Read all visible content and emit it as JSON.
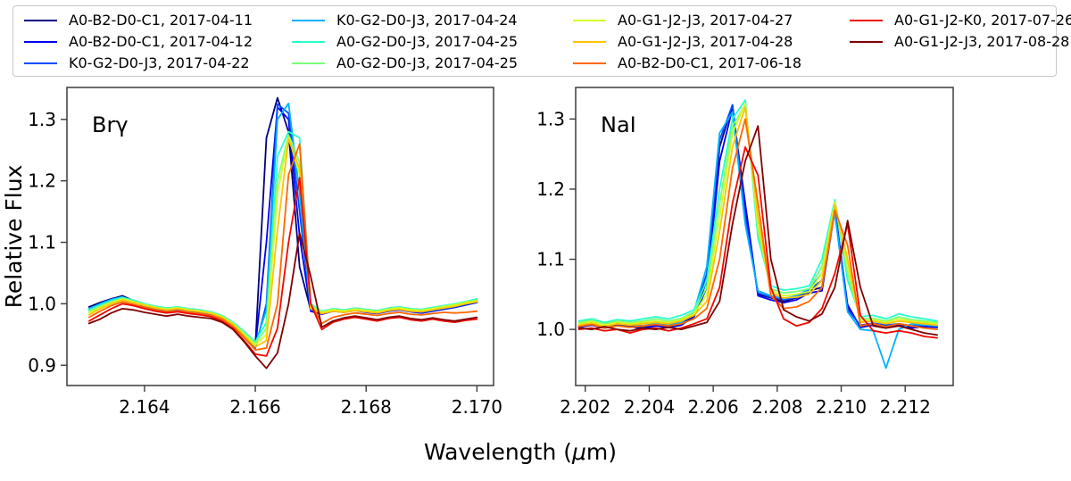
{
  "chart_data": {
    "type": "line",
    "xlabel": "Wavelength (μm)",
    "ylabel": "Relative Flux",
    "legend_position": "top",
    "grid": false,
    "panels": [
      {
        "id": "brgamma",
        "label": "Brγ",
        "xlim": [
          2.1626,
          2.1703
        ],
        "ylim": [
          0.867,
          1.352
        ],
        "xticks": [
          2.164,
          2.166,
          2.168,
          2.17
        ],
        "xtick_labels": [
          "2.164",
          "2.166",
          "2.168",
          "2.170"
        ],
        "yticks": [
          0.9,
          1.0,
          1.1,
          1.2,
          1.3
        ],
        "ytick_labels": [
          "0.9",
          "1.0",
          "1.1",
          "1.2",
          "1.3"
        ],
        "x_start": 2.163,
        "x_step": 0.0002
      },
      {
        "id": "nai",
        "label": "NaI",
        "xlim": [
          2.2017,
          2.2135
        ],
        "ylim": [
          0.92,
          1.345
        ],
        "xticks": [
          2.202,
          2.204,
          2.206,
          2.208,
          2.21,
          2.212
        ],
        "xtick_labels": [
          "2.202",
          "2.204",
          "2.206",
          "2.208",
          "2.210",
          "2.212"
        ],
        "yticks": [
          1.0,
          1.1,
          1.2,
          1.3
        ],
        "ytick_labels": [
          "1.0",
          "1.1",
          "1.2",
          "1.3"
        ],
        "x_start": 2.2018,
        "x_step": 0.0004
      }
    ],
    "series": [
      {
        "label": "A0-B2-D0-C1, 2017-04-11",
        "color": "#000080",
        "brgamma": [
          0.995,
          1.002,
          1.008,
          1.013,
          1.005,
          0.998,
          0.993,
          0.99,
          0.994,
          0.99,
          0.987,
          0.984,
          0.978,
          0.968,
          0.95,
          0.932,
          1.27,
          1.335,
          1.28,
          1.06,
          0.99,
          0.984,
          0.99,
          0.987,
          0.99,
          0.988,
          0.986,
          0.99,
          0.992,
          0.989,
          0.987,
          0.99,
          0.993,
          0.996,
          1.0,
          1.004
        ],
        "nai": [
          1.005,
          1.008,
          1.004,
          1.008,
          1.006,
          1.003,
          1.007,
          1.005,
          1.008,
          1.02,
          1.07,
          1.26,
          1.32,
          1.17,
          1.05,
          1.045,
          1.04,
          1.045,
          1.055,
          1.06,
          1.175,
          1.03,
          1.005,
          1.008,
          1.005,
          1.007,
          1.004,
          1.006,
          1.005
        ]
      },
      {
        "label": "A0-B2-D0-C1, 2017-04-12",
        "color": "#0000F1",
        "brgamma": [
          0.99,
          0.999,
          1.006,
          1.01,
          1.003,
          0.996,
          0.991,
          0.988,
          0.992,
          0.989,
          0.985,
          0.982,
          0.976,
          0.964,
          0.945,
          0.93,
          1.1,
          1.32,
          1.3,
          1.11,
          0.988,
          0.983,
          0.988,
          0.986,
          0.989,
          0.986,
          0.984,
          0.988,
          0.99,
          0.987,
          0.985,
          0.988,
          0.991,
          0.994,
          0.998,
          1.002
        ],
        "nai": [
          1.003,
          1.006,
          1.002,
          1.006,
          1.004,
          1.001,
          1.005,
          1.003,
          1.006,
          1.018,
          1.06,
          1.24,
          1.315,
          1.18,
          1.048,
          1.042,
          1.038,
          1.042,
          1.052,
          1.055,
          1.17,
          1.035,
          1.003,
          1.006,
          1.003,
          1.005,
          1.002,
          1.004,
          1.003
        ]
      },
      {
        "label": "K0-G2-D0-J3, 2017-04-22",
        "color": "#004CFF",
        "brgamma": [
          0.988,
          0.996,
          1.004,
          1.009,
          1.004,
          0.997,
          0.992,
          0.989,
          0.991,
          0.988,
          0.986,
          0.983,
          0.977,
          0.966,
          0.948,
          0.928,
          1.0,
          1.325,
          1.31,
          1.15,
          0.99,
          0.985,
          0.989,
          0.987,
          0.989,
          0.987,
          0.985,
          0.989,
          0.991,
          0.988,
          0.986,
          0.989,
          0.992,
          0.995,
          0.999,
          1.003
        ],
        "nai": [
          1.006,
          1.009,
          1.005,
          1.009,
          1.007,
          1.004,
          1.008,
          1.006,
          1.009,
          1.022,
          1.08,
          1.27,
          1.32,
          1.16,
          1.052,
          1.046,
          1.042,
          1.046,
          1.056,
          1.07,
          1.172,
          1.028,
          1.006,
          1.009,
          1.006,
          1.008,
          1.005,
          1.007,
          1.006
        ]
      },
      {
        "label": "K0-G2-D0-J3, 2017-04-24",
        "color": "#00B1FF",
        "brgamma": [
          0.992,
          1.0,
          1.007,
          1.011,
          1.005,
          0.999,
          0.994,
          0.991,
          0.993,
          0.99,
          0.988,
          0.985,
          0.979,
          0.968,
          0.952,
          0.935,
          0.99,
          1.3,
          1.326,
          1.18,
          0.992,
          0.986,
          0.99,
          0.988,
          0.991,
          0.989,
          0.987,
          0.991,
          0.993,
          0.99,
          0.988,
          0.991,
          0.994,
          0.997,
          1.001,
          1.005
        ],
        "nai": [
          1.008,
          1.01,
          1.006,
          1.01,
          1.008,
          1.005,
          1.009,
          1.007,
          1.01,
          1.025,
          1.09,
          1.28,
          1.31,
          1.15,
          1.055,
          1.048,
          1.044,
          1.048,
          1.058,
          1.08,
          1.165,
          1.025,
          1.0,
          0.998,
          0.945,
          1.0,
          1.008,
          1.006,
          1.005
        ]
      },
      {
        "label": "A0-G2-D0-J3, 2017-04-25",
        "color": "#29FFCE",
        "brgamma": [
          0.99,
          0.998,
          1.005,
          1.01,
          1.006,
          1.0,
          0.996,
          0.993,
          0.995,
          0.992,
          0.99,
          0.987,
          0.981,
          0.97,
          0.955,
          0.938,
          0.97,
          1.24,
          1.28,
          1.27,
          1.0,
          0.988,
          0.992,
          0.99,
          0.993,
          0.991,
          0.989,
          0.993,
          0.995,
          0.992,
          0.991,
          0.994,
          0.997,
          1.0,
          1.004,
          1.008
        ],
        "nai": [
          1.012,
          1.015,
          1.01,
          1.014,
          1.012,
          1.015,
          1.018,
          1.015,
          1.02,
          1.028,
          1.07,
          1.2,
          1.3,
          1.327,
          1.13,
          1.062,
          1.056,
          1.058,
          1.062,
          1.1,
          1.185,
          1.07,
          1.018,
          1.02,
          1.015,
          1.022,
          1.018,
          1.015,
          1.012
        ]
      },
      {
        "label": "A0-G2-D0-J3, 2017-04-25",
        "color": "#7DFF7A",
        "brgamma": [
          0.988,
          0.996,
          1.003,
          1.008,
          1.004,
          0.999,
          0.995,
          0.992,
          0.994,
          0.991,
          0.989,
          0.986,
          0.98,
          0.969,
          0.953,
          0.936,
          0.96,
          1.2,
          1.275,
          1.23,
          0.998,
          0.987,
          0.991,
          0.989,
          0.992,
          0.99,
          0.988,
          0.992,
          0.994,
          0.991,
          0.99,
          0.993,
          0.996,
          0.999,
          1.003,
          1.006
        ],
        "nai": [
          1.01,
          1.013,
          1.008,
          1.012,
          1.01,
          1.012,
          1.015,
          1.012,
          1.016,
          1.025,
          1.06,
          1.18,
          1.29,
          1.32,
          1.14,
          1.058,
          1.052,
          1.054,
          1.058,
          1.09,
          1.18,
          1.08,
          1.015,
          1.016,
          1.012,
          1.018,
          1.014,
          1.012,
          1.01
        ]
      },
      {
        "label": "A0-G1-J2-J3, 2017-04-27",
        "color": "#D1FF26",
        "brgamma": [
          0.985,
          0.994,
          1.002,
          1.008,
          1.003,
          0.998,
          0.994,
          0.991,
          0.993,
          0.99,
          0.988,
          0.985,
          0.979,
          0.967,
          0.95,
          0.933,
          0.95,
          1.18,
          1.272,
          1.21,
          0.995,
          0.986,
          0.99,
          0.988,
          0.991,
          0.989,
          0.987,
          0.991,
          0.993,
          0.99,
          0.989,
          0.992,
          0.995,
          0.998,
          1.002,
          1.005
        ],
        "nai": [
          1.008,
          1.011,
          1.006,
          1.01,
          1.008,
          1.01,
          1.012,
          1.01,
          1.014,
          1.022,
          1.05,
          1.16,
          1.28,
          1.322,
          1.15,
          1.055,
          1.048,
          1.05,
          1.054,
          1.08,
          1.182,
          1.09,
          1.012,
          1.014,
          1.01,
          1.015,
          1.012,
          1.01,
          1.008
        ]
      },
      {
        "label": "A0-G1-J2-J3, 2017-04-28",
        "color": "#FFC400",
        "brgamma": [
          0.982,
          0.992,
          1.0,
          1.006,
          1.002,
          0.997,
          0.993,
          0.99,
          0.992,
          0.989,
          0.987,
          0.984,
          0.978,
          0.966,
          0.948,
          0.93,
          0.94,
          1.12,
          1.268,
          1.22,
          0.992,
          0.984,
          0.988,
          0.986,
          0.989,
          0.987,
          0.985,
          0.989,
          0.991,
          0.988,
          0.987,
          0.99,
          0.993,
          0.996,
          1.0,
          1.003
        ],
        "nai": [
          1.006,
          1.009,
          1.004,
          1.008,
          1.006,
          1.008,
          1.01,
          1.008,
          1.012,
          1.02,
          1.04,
          1.14,
          1.26,
          1.317,
          1.16,
          1.052,
          1.045,
          1.046,
          1.05,
          1.07,
          1.178,
          1.1,
          1.01,
          1.012,
          1.008,
          1.012,
          1.01,
          1.008,
          1.006
        ]
      },
      {
        "label": "A0-B2-D0-C1, 2017-06-18",
        "color": "#FF6700",
        "brgamma": [
          0.978,
          0.988,
          0.997,
          1.003,
          0.999,
          0.994,
          0.99,
          0.987,
          0.989,
          0.986,
          0.984,
          0.981,
          0.975,
          0.963,
          0.945,
          0.925,
          0.928,
          1.0,
          1.21,
          1.26,
          1.0,
          0.968,
          0.978,
          0.982,
          0.985,
          0.983,
          0.981,
          0.984,
          0.986,
          0.983,
          0.982,
          0.984,
          0.986,
          0.985,
          0.986,
          0.988
        ],
        "nai": [
          1.004,
          1.007,
          1.002,
          1.005,
          1.003,
          1.005,
          1.007,
          1.005,
          1.008,
          1.015,
          1.03,
          1.1,
          1.23,
          1.3,
          1.18,
          1.048,
          1.03,
          1.032,
          1.04,
          1.06,
          1.17,
          1.12,
          1.005,
          1.008,
          1.004,
          1.008,
          1.005,
          1.002,
          1.0
        ]
      },
      {
        "label": "A0-G1-J2-K0, 2017-07-26",
        "color": "#F10800",
        "brgamma": [
          0.972,
          0.982,
          0.992,
          1.0,
          0.997,
          0.992,
          0.988,
          0.985,
          0.987,
          0.984,
          0.982,
          0.979,
          0.972,
          0.96,
          0.94,
          0.918,
          0.915,
          0.96,
          1.1,
          1.205,
          1.0,
          0.958,
          0.97,
          0.975,
          0.978,
          0.975,
          0.972,
          0.976,
          0.978,
          0.974,
          0.972,
          0.975,
          0.972,
          0.97,
          0.973,
          0.975
        ],
        "nai": [
          1.0,
          1.002,
          0.998,
          1.0,
          0.995,
          1.0,
          1.002,
          0.998,
          1.002,
          1.008,
          1.015,
          1.06,
          1.18,
          1.26,
          1.22,
          1.06,
          1.015,
          1.005,
          1.01,
          1.03,
          1.08,
          1.15,
          1.02,
          0.998,
          0.995,
          0.998,
          0.995,
          0.99,
          0.988
        ]
      },
      {
        "label": "A0-G1-J2-J3, 2017-08-28",
        "color": "#800000",
        "brgamma": [
          0.968,
          0.975,
          0.985,
          0.992,
          0.99,
          0.986,
          0.983,
          0.98,
          0.983,
          0.98,
          0.978,
          0.976,
          0.97,
          0.958,
          0.938,
          0.915,
          0.895,
          0.92,
          1.0,
          1.115,
          1.045,
          0.962,
          0.972,
          0.977,
          0.98,
          0.977,
          0.974,
          0.978,
          0.98,
          0.976,
          0.974,
          0.977,
          0.974,
          0.972,
          0.975,
          0.978
        ],
        "nai": [
          1.002,
          1.0,
          1.004,
          1.0,
          0.998,
          1.002,
          1.0,
          1.003,
          1.0,
          1.005,
          1.01,
          1.04,
          1.15,
          1.24,
          1.29,
          1.1,
          1.028,
          1.018,
          1.012,
          1.022,
          1.06,
          1.155,
          1.06,
          1.005,
          1.002,
          1.005,
          1.0,
          0.995,
          0.992
        ]
      }
    ]
  }
}
